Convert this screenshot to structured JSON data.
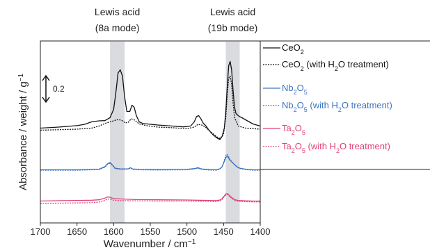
{
  "chart_data": {
    "type": "line",
    "xlabel": "Wavenumber / cm",
    "xlabel_sup": "−1",
    "ylabel": "Absorbance / weight / g",
    "ylabel_sup": "−1",
    "xlim": [
      1700,
      1400
    ],
    "x_reversed": true,
    "x_ticks": [
      1700,
      1650,
      1600,
      1550,
      1500,
      1450,
      1400
    ],
    "scale_bar": {
      "label": "0.2",
      "value": 0.2
    },
    "bands": [
      {
        "name": "Lewis acid (8a mode)",
        "line1": "Lewis acid",
        "line2": "(8a mode)",
        "range": [
          1605,
          1585
        ],
        "color": "#d9dbde"
      },
      {
        "name": "Lewis acid (19b mode)",
        "line1": "Lewis acid",
        "line2": "(19b mode)",
        "range": [
          1447,
          1428
        ],
        "color": "#d9dbde"
      }
    ],
    "series": [
      {
        "name": "CeO2",
        "label_main": "CeO",
        "sub": "2",
        "tail": "",
        "color": "#111111",
        "dash": "solid",
        "offset": 0.455,
        "x": [
          1700,
          1675,
          1650,
          1640,
          1630,
          1620,
          1612,
          1605,
          1600,
          1597,
          1594,
          1591,
          1588,
          1585,
          1582,
          1578,
          1575,
          1572,
          1569,
          1565,
          1560,
          1540,
          1520,
          1505,
          1495,
          1490,
          1487,
          1484,
          1481,
          1478,
          1474,
          1470,
          1465,
          1460,
          1455,
          1452,
          1449,
          1447,
          1445,
          1443,
          1441,
          1439,
          1437,
          1435,
          1433,
          1430,
          1428,
          1425,
          1420,
          1410,
          1400
        ],
        "y": [
          0.0,
          0.005,
          0.012,
          0.018,
          0.03,
          0.035,
          0.036,
          0.05,
          0.09,
          0.17,
          0.265,
          0.28,
          0.25,
          0.15,
          0.08,
          0.08,
          0.11,
          0.1,
          0.06,
          0.03,
          0.022,
          0.015,
          0.01,
          0.006,
          0.01,
          0.03,
          0.055,
          0.06,
          0.045,
          0.025,
          0.01,
          -0.01,
          -0.03,
          -0.045,
          -0.055,
          -0.04,
          0.0,
          0.08,
          0.2,
          0.3,
          0.32,
          0.28,
          0.18,
          0.1,
          0.07,
          0.06,
          0.055,
          0.05,
          0.04,
          0.02,
          0.01
        ]
      },
      {
        "name": "CeO2 (with H2O treatment)",
        "label_main": "CeO",
        "sub": "2",
        "tail": " (with H2O treatment)",
        "color": "#111111",
        "dash": "dotted",
        "offset": 0.455,
        "x": [
          1700,
          1650,
          1630,
          1620,
          1610,
          1600,
          1596,
          1592,
          1588,
          1584,
          1580,
          1576,
          1572,
          1565,
          1555,
          1540,
          1520,
          1500,
          1490,
          1485,
          1480,
          1475,
          1470,
          1465,
          1460,
          1455,
          1450,
          1447,
          1445,
          1443,
          1441,
          1439,
          1437,
          1435,
          1430,
          1420,
          1400
        ],
        "y": [
          -0.01,
          -0.005,
          0.0,
          0.01,
          0.025,
          0.035,
          0.04,
          0.04,
          0.035,
          0.025,
          0.028,
          0.045,
          0.04,
          0.02,
          0.012,
          0.005,
          0.002,
          -0.003,
          0.005,
          0.018,
          0.015,
          0.005,
          -0.01,
          -0.025,
          -0.04,
          -0.05,
          -0.03,
          0.05,
          0.16,
          0.24,
          0.25,
          0.21,
          0.12,
          0.05,
          0.01,
          0.0,
          -0.005
        ]
      },
      {
        "name": "Nb2O5",
        "label_main": "Nb",
        "sub": "2",
        "tail": "O5",
        "color": "#3d74c0",
        "dash": "solid",
        "offset": 0.255,
        "x": [
          1700,
          1650,
          1620,
          1612,
          1608,
          1605,
          1602,
          1598,
          1590,
          1580,
          1577,
          1574,
          1565,
          1540,
          1500,
          1490,
          1485,
          1480,
          1470,
          1460,
          1455,
          1452,
          1449,
          1447,
          1445,
          1443,
          1441,
          1438,
          1435,
          1432,
          1428,
          1420,
          1410,
          1400
        ],
        "y": [
          0.0,
          0.0,
          0.003,
          0.015,
          0.03,
          0.035,
          0.025,
          0.008,
          0.004,
          0.005,
          0.01,
          0.004,
          0.002,
          0.001,
          0.002,
          0.006,
          0.01,
          0.004,
          0.001,
          0.0,
          0.005,
          0.015,
          0.04,
          0.06,
          0.065,
          0.055,
          0.045,
          0.035,
          0.025,
          0.015,
          0.008,
          0.003,
          0.0,
          0.0
        ]
      },
      {
        "name": "Nb2O5 (with H2O treatment)",
        "label_main": "Nb",
        "sub": "2",
        "tail": "O5 (with H2O treatment)",
        "color": "#3d74c0",
        "dash": "dotted",
        "offset": 0.255,
        "x": [
          1700,
          1650,
          1620,
          1612,
          1608,
          1605,
          1602,
          1598,
          1590,
          1580,
          1577,
          1574,
          1565,
          1540,
          1500,
          1490,
          1485,
          1480,
          1470,
          1460,
          1455,
          1452,
          1449,
          1447,
          1445,
          1443,
          1441,
          1438,
          1435,
          1432,
          1428,
          1420,
          1410,
          1400
        ],
        "y": [
          -0.002,
          -0.002,
          0.001,
          0.012,
          0.027,
          0.031,
          0.022,
          0.006,
          0.002,
          0.003,
          0.008,
          0.002,
          0.0,
          -0.001,
          0.0,
          0.004,
          0.008,
          0.002,
          -0.001,
          -0.002,
          0.004,
          0.014,
          0.045,
          0.07,
          0.075,
          0.062,
          0.048,
          0.036,
          0.024,
          0.014,
          0.006,
          0.001,
          -0.002,
          -0.002
        ]
      },
      {
        "name": "Ta2O5",
        "label_main": "Ta",
        "sub": "2",
        "tail": "O5",
        "color": "#e0407a",
        "dash": "solid",
        "offset": 0.105,
        "x": [
          1700,
          1670,
          1650,
          1630,
          1620,
          1612,
          1608,
          1605,
          1600,
          1590,
          1570,
          1540,
          1500,
          1470,
          1460,
          1455,
          1452,
          1449,
          1447,
          1445,
          1443,
          1440,
          1437,
          1434,
          1430,
          1420,
          1410,
          1400
        ],
        "y": [
          0.0,
          0.002,
          0.003,
          0.004,
          0.006,
          0.014,
          0.02,
          0.018,
          0.012,
          0.01,
          0.007,
          0.006,
          0.005,
          0.003,
          0.002,
          0.005,
          0.012,
          0.025,
          0.034,
          0.036,
          0.03,
          0.02,
          0.012,
          0.006,
          0.003,
          0.001,
          0.0,
          0.0
        ]
      },
      {
        "name": "Ta2O5 (with H2O treatment)",
        "label_main": "Ta",
        "sub": "2",
        "tail": "O5 (with H2O treatment)",
        "color": "#e0407a",
        "dash": "dotted",
        "offset": 0.105,
        "x": [
          1700,
          1670,
          1650,
          1630,
          1620,
          1612,
          1608,
          1605,
          1600,
          1590,
          1570,
          1540,
          1500,
          1470,
          1460,
          1455,
          1452,
          1449,
          1447,
          1445,
          1443,
          1440,
          1437,
          1434,
          1430,
          1420,
          1410,
          1400
        ],
        "y": [
          -0.012,
          -0.01,
          -0.009,
          -0.008,
          -0.005,
          0.003,
          0.01,
          0.009,
          0.004,
          0.002,
          0.001,
          0.0,
          0.0,
          -0.001,
          -0.002,
          0.001,
          0.008,
          0.022,
          0.03,
          0.032,
          0.026,
          0.016,
          0.008,
          0.002,
          -0.001,
          -0.003,
          -0.004,
          -0.004
        ]
      }
    ]
  }
}
